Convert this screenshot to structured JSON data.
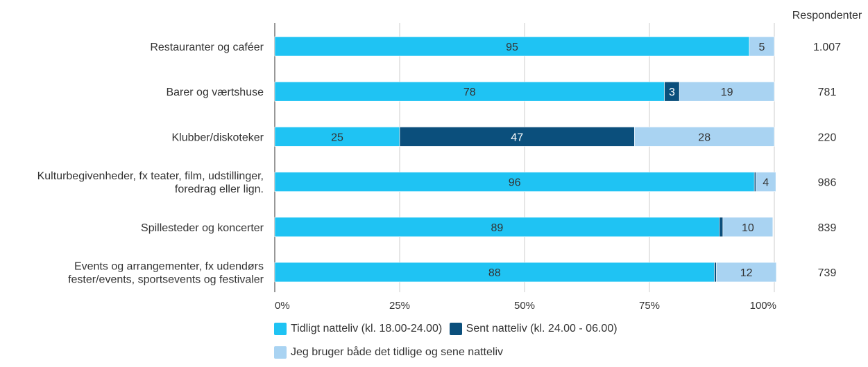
{
  "chart_data": {
    "type": "bar",
    "orientation": "horizontal",
    "stacked": "percent",
    "categories": [
      [
        "Restauranter og caféer"
      ],
      [
        "Barer og værtshuse"
      ],
      [
        "Klubber/diskoteker"
      ],
      [
        "Kulturbegivenheder, fx teater, film, udstillinger,",
        "foredrag eller lign."
      ],
      [
        "Spillesteder og koncerter"
      ],
      [
        "Events og arrangementer, fx udendørs",
        "fester/events, sportsevents og festivaler"
      ]
    ],
    "series": [
      {
        "name": "Tidligt natteliv (kl. 18.00-24.00)",
        "color": "#1fc3f3",
        "label_color": "#333333",
        "values": [
          95,
          78,
          25,
          96,
          89,
          88
        ],
        "labels": [
          "95",
          "78",
          "25",
          "96",
          "89",
          "88"
        ]
      },
      {
        "name": "Sent natteliv (kl. 24.00 - 06.00)",
        "color": "#0b4f7c",
        "label_color": "#ffffff",
        "values": [
          0,
          3,
          47,
          0.3,
          0.7,
          0.4
        ],
        "labels": [
          "",
          "3",
          "47",
          "",
          "",
          ""
        ]
      },
      {
        "name": "Jeg bruger både det tidlige og sene natteliv",
        "color": "#a9d3f2",
        "label_color": "#333333",
        "values": [
          5,
          19,
          28,
          4,
          10,
          12
        ],
        "labels": [
          "5",
          "19",
          "28",
          "4",
          "10",
          "12"
        ]
      }
    ],
    "respondents_header": "Respondenter",
    "respondents": [
      "1.007",
      "781",
      "220",
      "986",
      "839",
      "739"
    ],
    "xticks": [
      "0%",
      "25%",
      "50%",
      "75%",
      "100%"
    ],
    "xlim": [
      0,
      100
    ],
    "grid": true,
    "legend_position": "bottom"
  }
}
